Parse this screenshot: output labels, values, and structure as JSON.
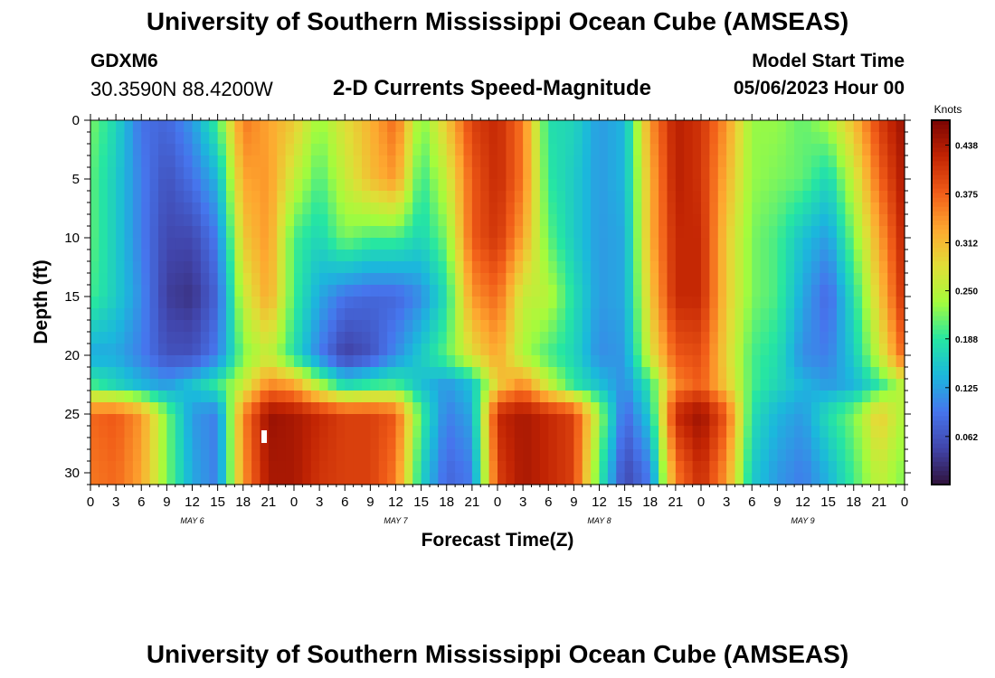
{
  "header": {
    "title": "University of Southern Mississippi Ocean Cube (AMSEAS)",
    "station": "GDXM6",
    "location": "30.3590N  88.4200W",
    "subtitle": "2-D Currents Speed-Magnitude",
    "model_start_label": "Model Start Time",
    "model_start_value": "05/06/2023 Hour 00"
  },
  "footer": {
    "title": "University of Southern Mississippi Ocean Cube (AMSEAS)"
  },
  "chart_data": {
    "type": "heatmap",
    "title": "2-D Currents Speed-Magnitude",
    "xlabel": "Forecast Time(Z)",
    "ylabel": "Depth (ft)",
    "x_unit": "hours since model start",
    "xlim": [
      0,
      96
    ],
    "ylim": [
      0,
      31
    ],
    "y_inverted": true,
    "x_ticks": [
      0,
      3,
      6,
      9,
      12,
      15,
      18,
      21,
      24,
      27,
      30,
      33,
      36,
      39,
      42,
      45,
      48,
      51,
      54,
      57,
      60,
      63,
      66,
      69,
      72,
      75,
      78,
      81,
      84,
      87,
      90,
      93,
      96
    ],
    "x_tick_labels": [
      "0",
      "3",
      "6",
      "9",
      "12",
      "15",
      "18",
      "21",
      "0",
      "3",
      "6",
      "9",
      "12",
      "15",
      "18",
      "21",
      "0",
      "3",
      "6",
      "9",
      "12",
      "15",
      "18",
      "21",
      "0",
      "3",
      "6",
      "9",
      "12",
      "15",
      "18",
      "21",
      "0"
    ],
    "y_ticks": [
      0,
      5,
      10,
      15,
      20,
      25,
      30
    ],
    "y_tick_labels": [
      "0",
      "5",
      "10",
      "15",
      "20",
      "25",
      "30"
    ],
    "day_labels": [
      {
        "x": 12,
        "label": "MAY 6"
      },
      {
        "x": 36,
        "label": "MAY 7"
      },
      {
        "x": 60,
        "label": "MAY 8"
      },
      {
        "x": 84,
        "label": "MAY 9"
      }
    ],
    "colorbar": {
      "unit": "Knots",
      "min": 0,
      "max": 0.47,
      "ticks": [
        0.062,
        0.125,
        0.188,
        0.25,
        0.312,
        0.375,
        0.438
      ],
      "tick_labels": [
        "0.062",
        "0.125",
        "0.188",
        "0.250",
        "0.312",
        "0.375",
        "0.438"
      ]
    },
    "time_hours": [
      0,
      3,
      6,
      9,
      12,
      15,
      18,
      21,
      24,
      27,
      30,
      33,
      36,
      39,
      42,
      45,
      48,
      51,
      54,
      57,
      60,
      63,
      66,
      69,
      72,
      75,
      78,
      81,
      84,
      87,
      90,
      93,
      96
    ],
    "depth_ft": [
      0,
      5,
      10,
      15,
      20,
      22.5,
      25,
      30
    ],
    "values_knots": [
      [
        0.22,
        0.17,
        0.09,
        0.08,
        0.12,
        0.2,
        0.36,
        0.33,
        0.3,
        0.23,
        0.28,
        0.32,
        0.37,
        0.22,
        0.3,
        0.4,
        0.42,
        0.36,
        0.18,
        0.17,
        0.12,
        0.14,
        0.34,
        0.43,
        0.41,
        0.34,
        0.23,
        0.23,
        0.21,
        0.24,
        0.31,
        0.4,
        0.45
      ],
      [
        0.21,
        0.16,
        0.1,
        0.06,
        0.09,
        0.14,
        0.33,
        0.34,
        0.26,
        0.2,
        0.26,
        0.31,
        0.34,
        0.19,
        0.26,
        0.38,
        0.42,
        0.36,
        0.19,
        0.16,
        0.12,
        0.14,
        0.32,
        0.43,
        0.41,
        0.32,
        0.23,
        0.22,
        0.21,
        0.17,
        0.26,
        0.37,
        0.44
      ],
      [
        0.21,
        0.16,
        0.1,
        0.05,
        0.05,
        0.1,
        0.3,
        0.34,
        0.2,
        0.17,
        0.22,
        0.2,
        0.2,
        0.17,
        0.22,
        0.38,
        0.41,
        0.33,
        0.21,
        0.16,
        0.12,
        0.13,
        0.32,
        0.42,
        0.42,
        0.3,
        0.22,
        0.2,
        0.15,
        0.12,
        0.22,
        0.33,
        0.43
      ],
      [
        0.2,
        0.16,
        0.11,
        0.04,
        0.03,
        0.08,
        0.26,
        0.33,
        0.2,
        0.13,
        0.09,
        0.08,
        0.08,
        0.11,
        0.18,
        0.34,
        0.37,
        0.26,
        0.25,
        0.18,
        0.12,
        0.13,
        0.3,
        0.42,
        0.42,
        0.3,
        0.22,
        0.2,
        0.13,
        0.08,
        0.18,
        0.3,
        0.42
      ],
      [
        0.13,
        0.13,
        0.1,
        0.06,
        0.06,
        0.1,
        0.22,
        0.26,
        0.18,
        0.1,
        0.04,
        0.06,
        0.11,
        0.16,
        0.21,
        0.28,
        0.33,
        0.24,
        0.2,
        0.17,
        0.11,
        0.12,
        0.27,
        0.38,
        0.39,
        0.29,
        0.2,
        0.18,
        0.11,
        0.1,
        0.16,
        0.26,
        0.38
      ],
      [
        0.2,
        0.17,
        0.14,
        0.12,
        0.15,
        0.19,
        0.26,
        0.35,
        0.33,
        0.24,
        0.17,
        0.19,
        0.2,
        0.15,
        0.12,
        0.15,
        0.3,
        0.35,
        0.26,
        0.19,
        0.15,
        0.11,
        0.19,
        0.35,
        0.38,
        0.3,
        0.2,
        0.17,
        0.14,
        0.12,
        0.14,
        0.19,
        0.26
      ],
      [
        0.37,
        0.38,
        0.34,
        0.22,
        0.12,
        0.1,
        0.35,
        0.45,
        0.44,
        0.42,
        0.4,
        0.4,
        0.38,
        0.2,
        0.1,
        0.13,
        0.42,
        0.44,
        0.42,
        0.4,
        0.24,
        0.08,
        0.16,
        0.42,
        0.45,
        0.38,
        0.18,
        0.14,
        0.12,
        0.18,
        0.22,
        0.3,
        0.24
      ],
      [
        0.36,
        0.37,
        0.33,
        0.22,
        0.13,
        0.1,
        0.34,
        0.44,
        0.44,
        0.41,
        0.4,
        0.4,
        0.36,
        0.17,
        0.08,
        0.1,
        0.4,
        0.44,
        0.42,
        0.4,
        0.2,
        0.05,
        0.1,
        0.36,
        0.42,
        0.34,
        0.16,
        0.12,
        0.1,
        0.14,
        0.2,
        0.26,
        0.22
      ]
    ]
  }
}
